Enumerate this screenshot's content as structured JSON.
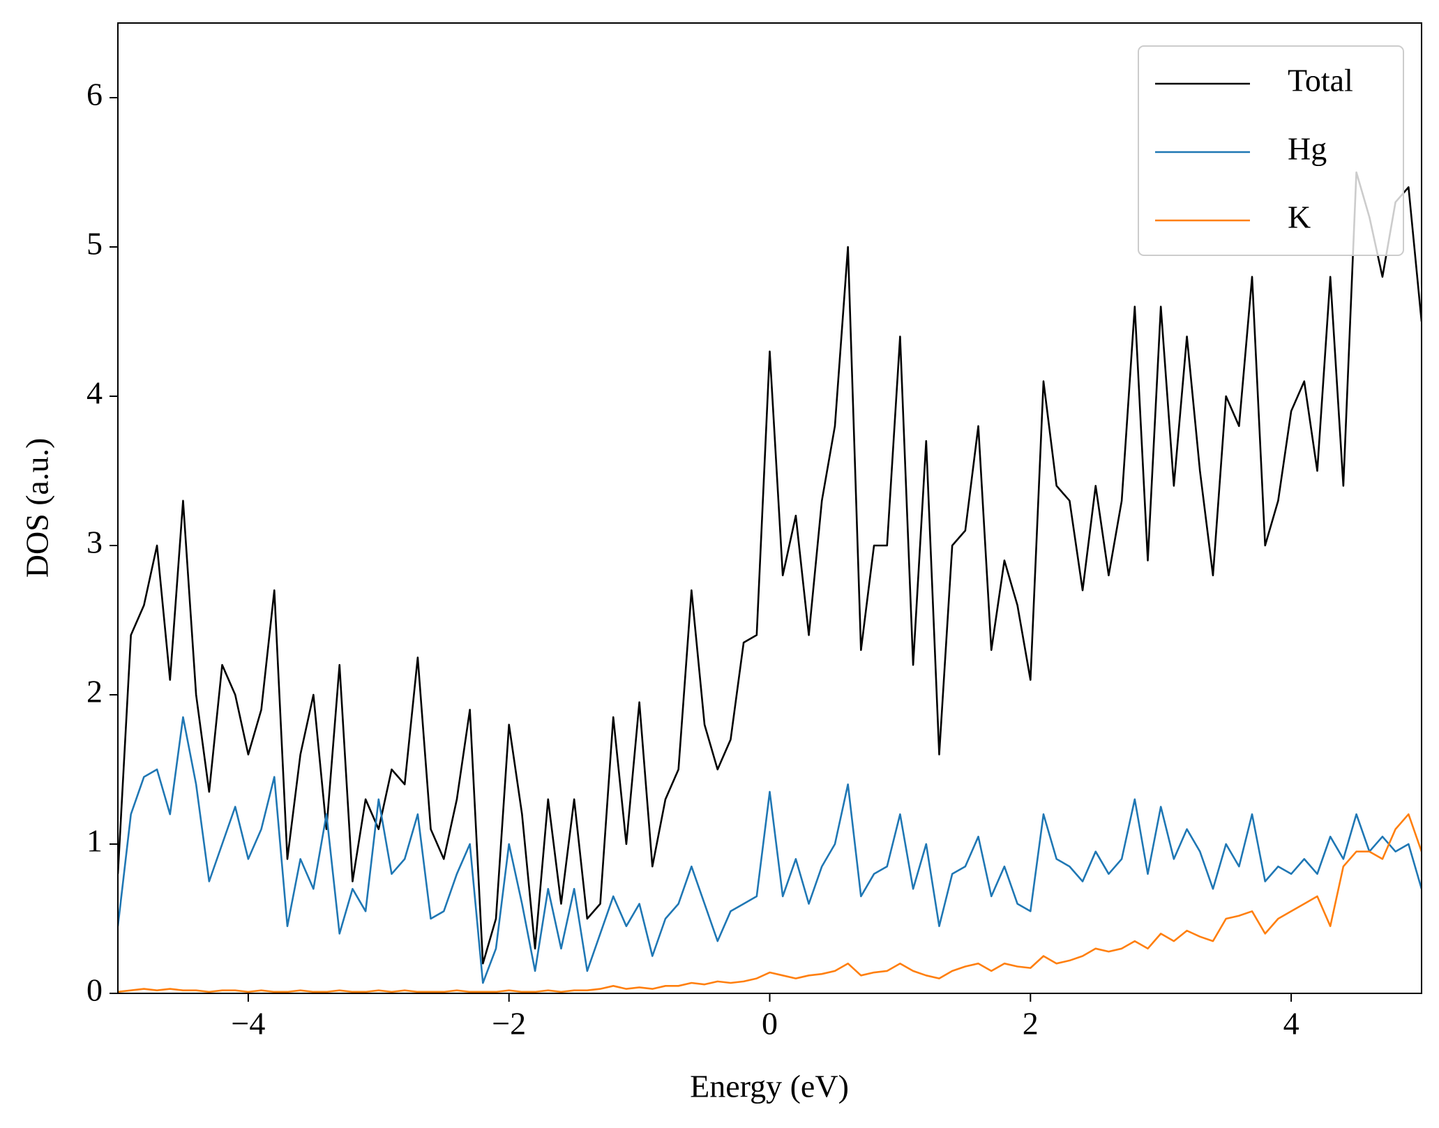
{
  "chart_data": {
    "type": "line",
    "xlabel": "Energy (eV)",
    "ylabel": "DOS (a.u.)",
    "xlim": [
      -5,
      5
    ],
    "ylim": [
      0,
      6.5
    ],
    "xticks": [
      {
        "value": -4,
        "label": "−4"
      },
      {
        "value": -2,
        "label": "−2"
      },
      0,
      2,
      4
    ],
    "yticks": [
      0,
      1,
      2,
      3,
      4,
      5,
      6
    ],
    "legend": "upper right",
    "x": [
      -5.0,
      -4.9,
      -4.8,
      -4.7,
      -4.6,
      -4.5,
      -4.4,
      -4.3,
      -4.2,
      -4.1,
      -4.0,
      -3.9,
      -3.8,
      -3.7,
      -3.6,
      -3.5,
      -3.4,
      -3.3,
      -3.2,
      -3.1,
      -3.0,
      -2.9,
      -2.8,
      -2.7,
      -2.6,
      -2.5,
      -2.4,
      -2.3,
      -2.2,
      -2.1,
      -2.0,
      -1.9,
      -1.8,
      -1.7,
      -1.6,
      -1.5,
      -1.4,
      -1.3,
      -1.2,
      -1.1,
      -1.0,
      -0.9,
      -0.8,
      -0.7,
      -0.6,
      -0.5,
      -0.4,
      -0.3,
      -0.2,
      -0.1,
      0.0,
      0.1,
      0.2,
      0.3,
      0.4,
      0.5,
      0.6,
      0.7,
      0.8,
      0.9,
      1.0,
      1.1,
      1.2,
      1.3,
      1.4,
      1.5,
      1.6,
      1.7,
      1.8,
      1.9,
      2.0,
      2.1,
      2.2,
      2.3,
      2.4,
      2.5,
      2.6,
      2.7,
      2.8,
      2.9,
      3.0,
      3.1,
      3.2,
      3.3,
      3.4,
      3.5,
      3.6,
      3.7,
      3.8,
      3.9,
      4.0,
      4.1,
      4.2,
      4.3,
      4.4,
      4.5,
      4.6,
      4.7,
      4.8,
      4.9,
      5.0
    ],
    "series": [
      {
        "name": "Total",
        "color": "#000000",
        "values": [
          0.8,
          2.4,
          2.6,
          3.0,
          2.1,
          3.3,
          2.0,
          1.35,
          2.2,
          2.0,
          1.6,
          1.9,
          2.7,
          0.9,
          1.6,
          2.0,
          1.1,
          2.2,
          0.75,
          1.3,
          1.1,
          1.5,
          1.4,
          2.25,
          1.1,
          0.9,
          1.3,
          1.9,
          0.2,
          0.5,
          1.8,
          1.2,
          0.3,
          1.3,
          0.6,
          1.3,
          0.5,
          0.6,
          1.85,
          1.0,
          1.95,
          0.85,
          1.3,
          1.5,
          2.7,
          1.8,
          1.5,
          1.7,
          2.35,
          2.4,
          4.3,
          2.8,
          3.2,
          2.4,
          3.3,
          3.8,
          5.0,
          2.3,
          3.0,
          3.0,
          4.4,
          2.2,
          3.7,
          1.6,
          3.0,
          3.1,
          3.8,
          2.3,
          2.9,
          2.6,
          2.1,
          4.1,
          3.4,
          3.3,
          2.7,
          3.4,
          2.8,
          3.3,
          4.6,
          2.9,
          4.6,
          3.4,
          4.4,
          3.5,
          2.8,
          4.0,
          3.8,
          4.8,
          3.0,
          3.3,
          3.9,
          4.1,
          3.5,
          4.8,
          3.4,
          5.5,
          5.2,
          4.8,
          5.3,
          5.4,
          4.5
        ]
      },
      {
        "name": "Hg",
        "color": "#1f77b4",
        "values": [
          0.45,
          1.2,
          1.45,
          1.5,
          1.2,
          1.85,
          1.4,
          0.75,
          1.0,
          1.25,
          0.9,
          1.1,
          1.45,
          0.45,
          0.9,
          0.7,
          1.2,
          0.4,
          0.7,
          0.55,
          1.3,
          0.8,
          0.9,
          1.2,
          0.5,
          0.55,
          0.8,
          1.0,
          0.07,
          0.3,
          1.0,
          0.6,
          0.15,
          0.7,
          0.3,
          0.7,
          0.15,
          0.4,
          0.65,
          0.45,
          0.6,
          0.25,
          0.5,
          0.6,
          0.85,
          0.6,
          0.35,
          0.55,
          0.6,
          0.65,
          1.35,
          0.65,
          0.9,
          0.6,
          0.85,
          1.0,
          1.4,
          0.65,
          0.8,
          0.85,
          1.2,
          0.7,
          1.0,
          0.45,
          0.8,
          0.85,
          1.05,
          0.65,
          0.85,
          0.6,
          0.55,
          1.2,
          0.9,
          0.85,
          0.75,
          0.95,
          0.8,
          0.9,
          1.3,
          0.8,
          1.25,
          0.9,
          1.1,
          0.95,
          0.7,
          1.0,
          0.85,
          1.2,
          0.75,
          0.85,
          0.8,
          0.9,
          0.8,
          1.05,
          0.9,
          1.2,
          0.95,
          1.05,
          0.95,
          1.0,
          0.7
        ]
      },
      {
        "name": "K",
        "color": "#ff7f0e",
        "values": [
          0.01,
          0.02,
          0.03,
          0.02,
          0.03,
          0.02,
          0.02,
          0.01,
          0.02,
          0.02,
          0.01,
          0.02,
          0.01,
          0.01,
          0.02,
          0.01,
          0.01,
          0.02,
          0.01,
          0.01,
          0.02,
          0.01,
          0.02,
          0.01,
          0.01,
          0.01,
          0.02,
          0.01,
          0.01,
          0.01,
          0.02,
          0.01,
          0.01,
          0.02,
          0.01,
          0.02,
          0.02,
          0.03,
          0.05,
          0.03,
          0.04,
          0.03,
          0.05,
          0.05,
          0.07,
          0.06,
          0.08,
          0.07,
          0.08,
          0.1,
          0.14,
          0.12,
          0.1,
          0.12,
          0.13,
          0.15,
          0.2,
          0.12,
          0.14,
          0.15,
          0.2,
          0.15,
          0.12,
          0.1,
          0.15,
          0.18,
          0.2,
          0.15,
          0.2,
          0.18,
          0.17,
          0.25,
          0.2,
          0.22,
          0.25,
          0.3,
          0.28,
          0.3,
          0.35,
          0.3,
          0.4,
          0.35,
          0.42,
          0.38,
          0.35,
          0.5,
          0.52,
          0.55,
          0.4,
          0.5,
          0.55,
          0.6,
          0.65,
          0.45,
          0.85,
          0.95,
          0.95,
          0.9,
          1.1,
          1.2,
          0.95
        ]
      }
    ]
  }
}
